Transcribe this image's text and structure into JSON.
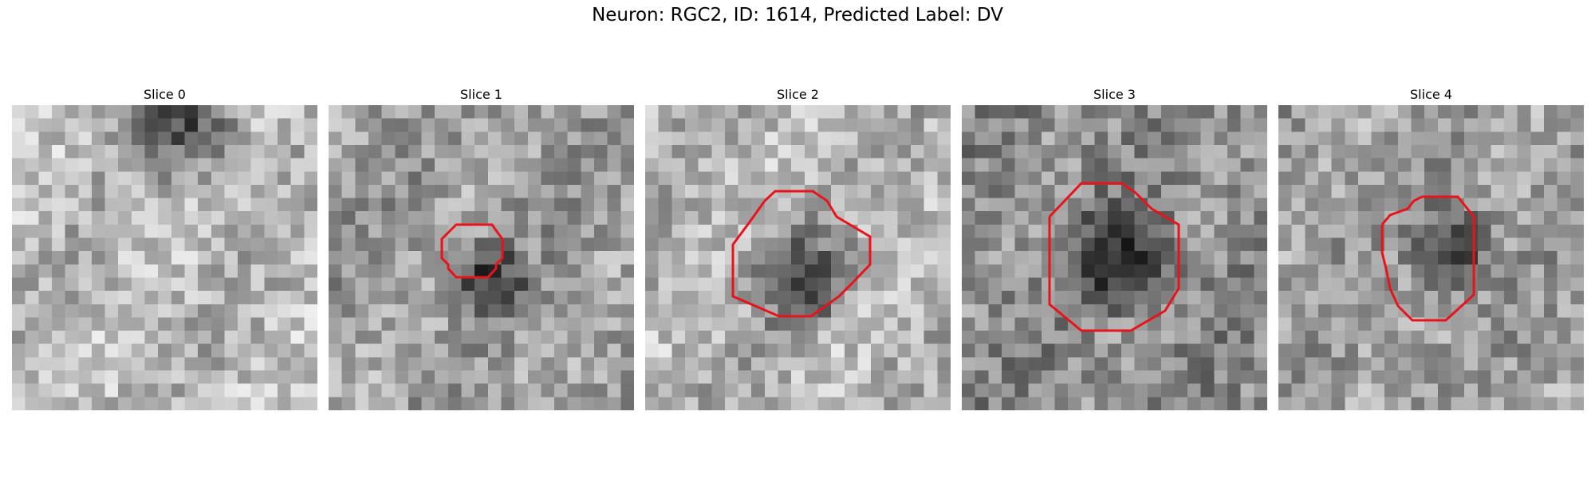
{
  "figure": {
    "title": "Neuron: RGC2, ID: 1614, Predicted Label: DV"
  },
  "slices": [
    {
      "title": "Slice 0",
      "has_contour": false,
      "dark_blob": [
        0.55,
        0.05,
        0.25
      ],
      "brightness": 0.72
    },
    {
      "title": "Slice 1",
      "has_contour": true,
      "dark_blob": [
        0.5,
        0.55,
        0.18
      ],
      "brightness": 0.62
    },
    {
      "title": "Slice 2",
      "has_contour": true,
      "dark_blob": [
        0.5,
        0.55,
        0.22
      ],
      "brightness": 0.7
    },
    {
      "title": "Slice 3",
      "has_contour": true,
      "dark_blob": [
        0.5,
        0.48,
        0.24
      ],
      "brightness": 0.55
    },
    {
      "title": "Slice 4",
      "has_contour": true,
      "dark_blob": [
        0.55,
        0.45,
        0.2
      ],
      "brightness": 0.62
    }
  ],
  "colors": {
    "contour": "#e8131b"
  }
}
